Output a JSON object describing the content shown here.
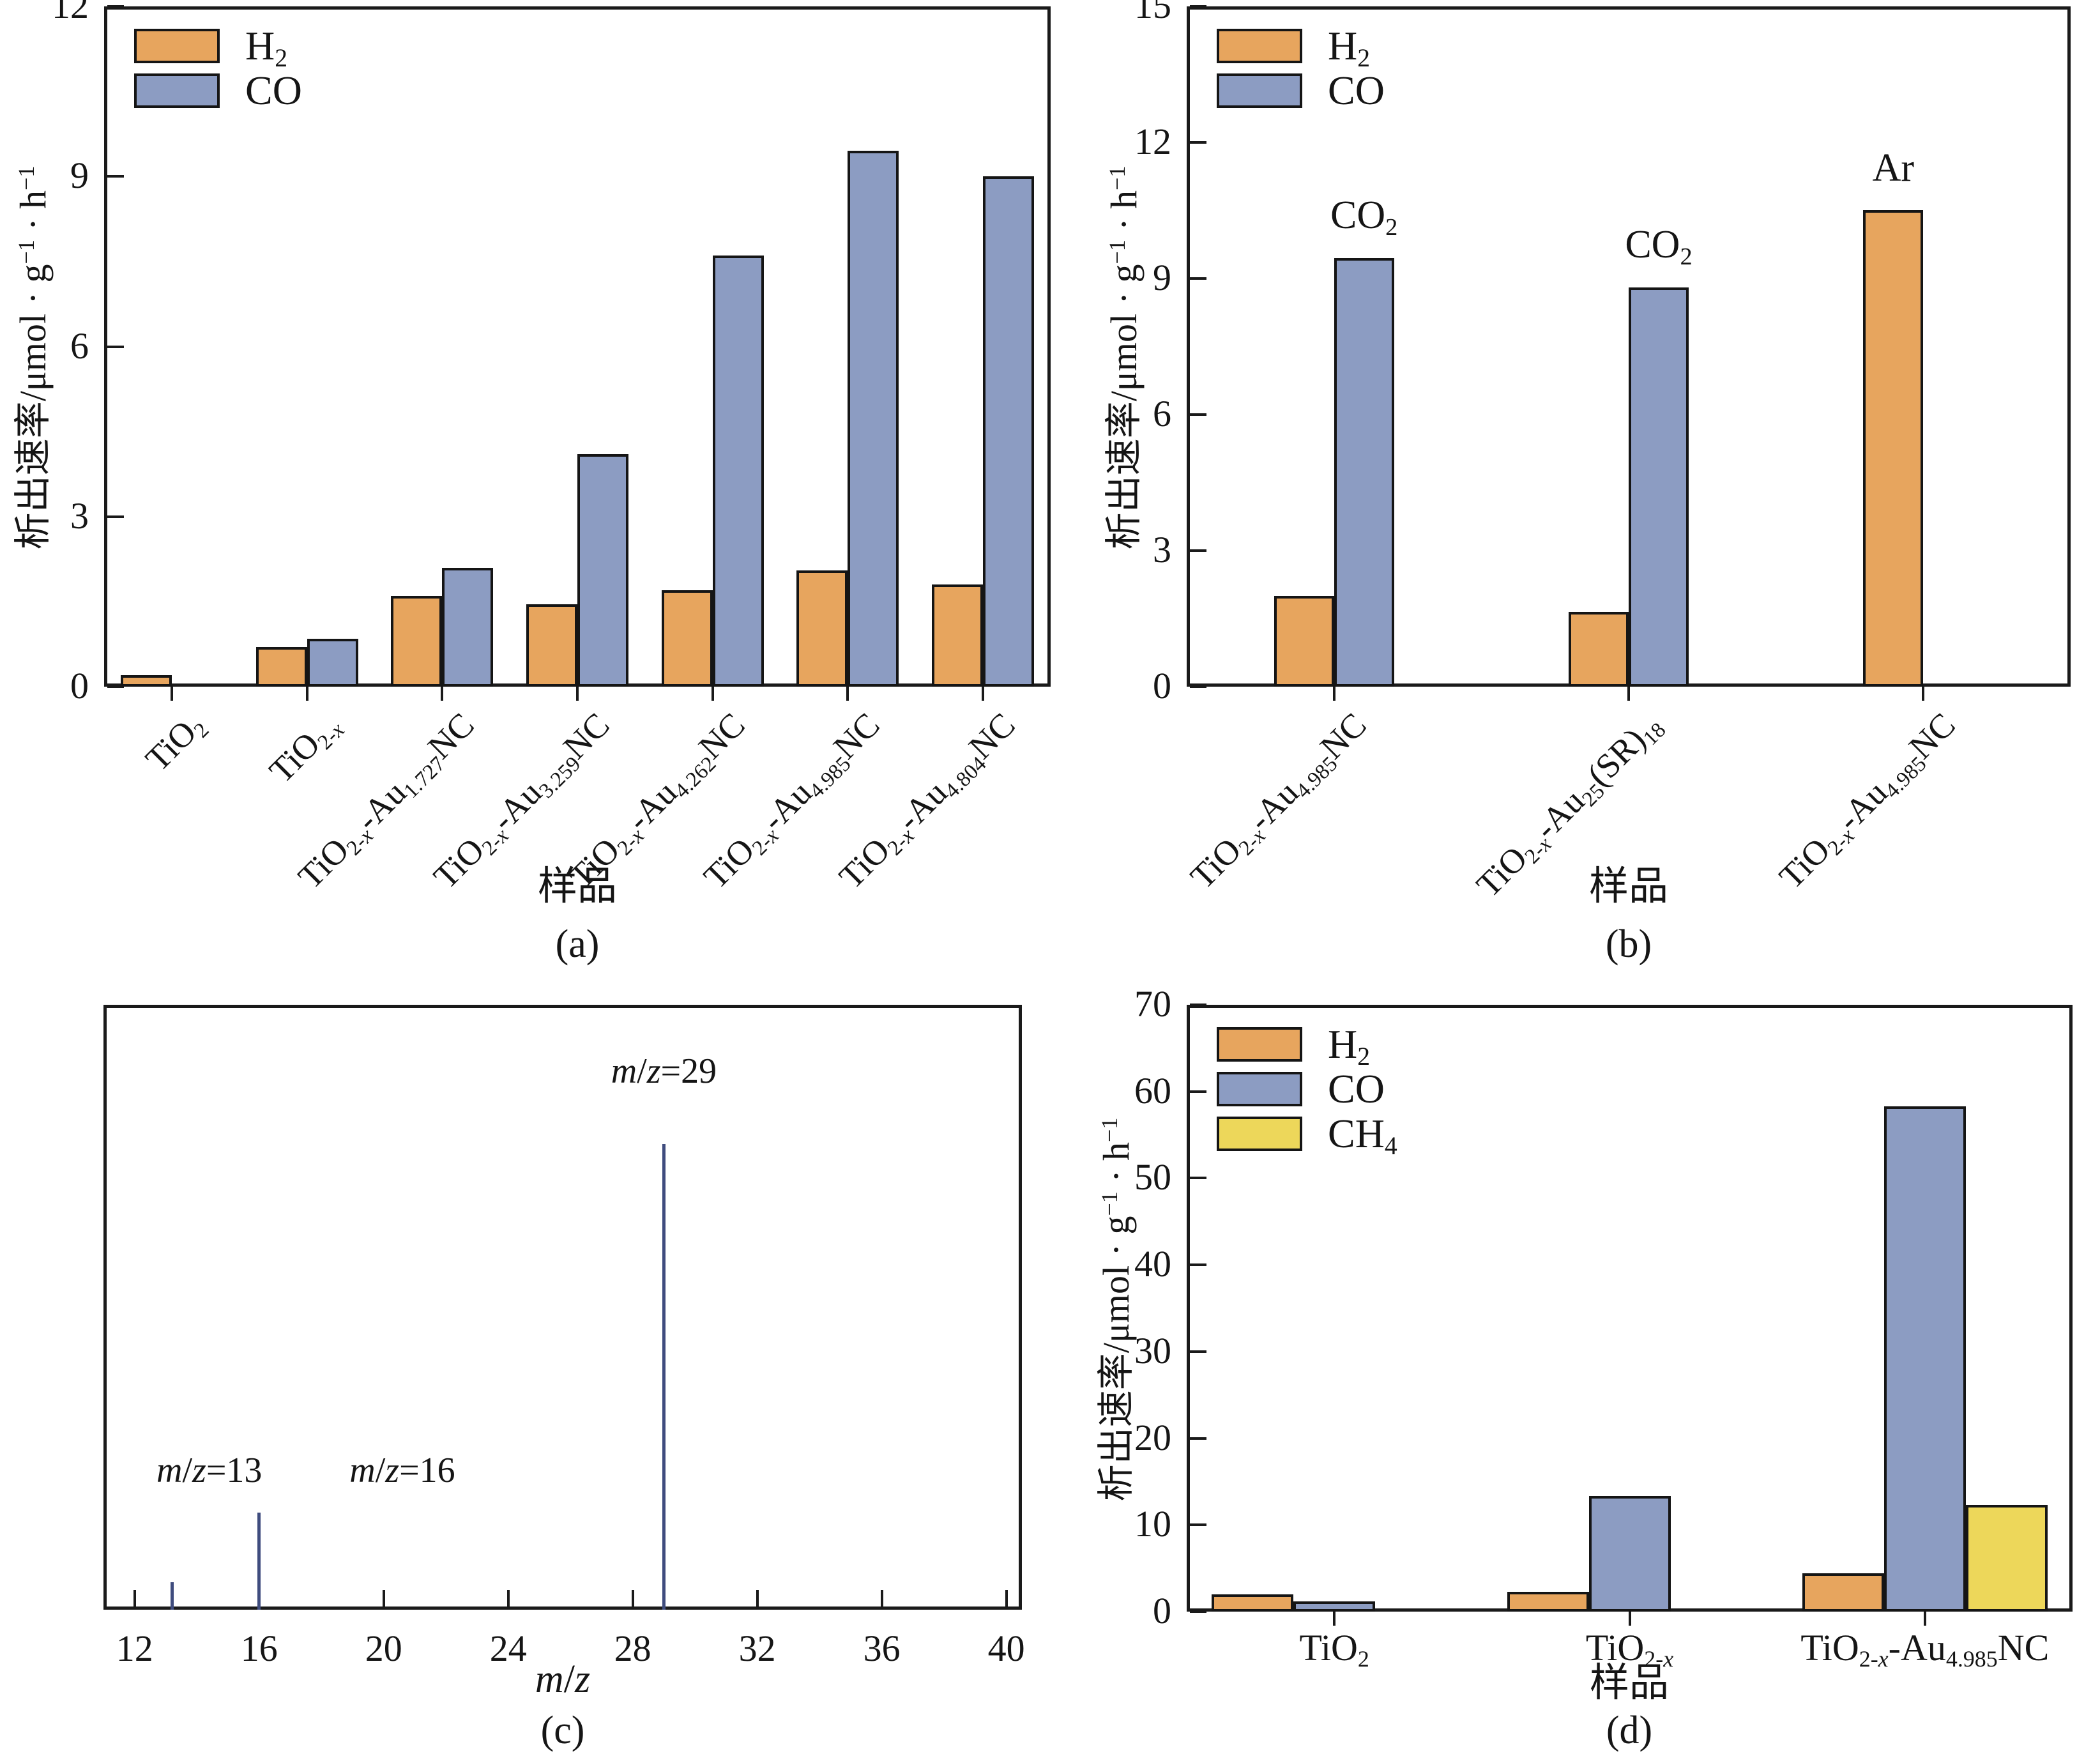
{
  "figure": {
    "y_axis_label_html": "析出速率/μmol · g<sup>−1</sup> · h<sup>−1</sup>",
    "x_axis_title_samples": "样品",
    "colors": {
      "h2_orange": "#E7A55E",
      "co_blue": "#8C9CC2",
      "ch4_yellow": "#EDD75A",
      "spectrum_line": "#3F4C7E",
      "ink": "#151515"
    }
  },
  "chart_data": [
    {
      "id": "a",
      "type": "bar",
      "panel_label": "(a)",
      "ylabel_html": "析出速率/μmol · g<sup>−1</sup> · h<sup>−1</sup>",
      "xlabel_html": "样品",
      "ylim": [
        0,
        12
      ],
      "yticks": [
        0,
        3,
        6,
        9,
        12
      ],
      "grid": false,
      "legend_position": "top-left",
      "rotated_xticks": true,
      "categories_html": [
        "TiO<sub>2</sub>",
        "TiO<sub>2-<i>x</i></sub>",
        "TiO<sub>2-<i>x</i></sub>-Au<sub>1.727</sub>NC",
        "TiO<sub>2-<i>x</i></sub>-Au<sub>3.259</sub>NC",
        "TiO<sub>2-<i>x</i></sub>-Au<sub>4.262</sub>NC",
        "TiO<sub>2-<i>x</i></sub>-Au<sub>4.985</sub>NC",
        "TiO<sub>2-<i>x</i></sub>-Au<sub>4.804</sub>NC"
      ],
      "series": [
        {
          "name": "H2",
          "label_html": "H<sub>2</sub>",
          "color": "#E7A55E",
          "values": [
            0.2,
            0.7,
            1.6,
            1.45,
            1.7,
            2.05,
            1.8
          ]
        },
        {
          "name": "CO",
          "label_html": "CO",
          "color": "#8C9CC2",
          "values": [
            0,
            0.85,
            2.1,
            4.1,
            7.6,
            9.45,
            9.0
          ]
        }
      ],
      "annotations": []
    },
    {
      "id": "b",
      "type": "bar",
      "panel_label": "(b)",
      "ylabel_html": "析出速率/μmol · g<sup>−1</sup> · h<sup>−1</sup>",
      "xlabel_html": "样品",
      "ylim": [
        0,
        15
      ],
      "yticks": [
        0,
        3,
        6,
        9,
        12,
        15
      ],
      "grid": false,
      "legend_position": "top-left",
      "rotated_xticks": true,
      "categories_html": [
        "TiO<sub>2-<i>x</i></sub>-Au<sub>4.985</sub>NC",
        "TiO<sub>2-<i>x</i></sub>-Au<sub>25</sub>(SR)<sub>18</sub>",
        "TiO<sub>2-<i>x</i></sub>-Au<sub>4.985</sub>NC"
      ],
      "series": [
        {
          "name": "H2",
          "label_html": "H<sub>2</sub>",
          "color": "#E7A55E",
          "values": [
            2.0,
            1.65,
            10.5
          ]
        },
        {
          "name": "CO",
          "label_html": "CO",
          "color": "#8C9CC2",
          "values": [
            9.45,
            8.8,
            null
          ]
        }
      ],
      "annotations": [
        {
          "html": "CO<sub>2</sub>",
          "group": 0,
          "series": 1
        },
        {
          "html": "CO<sub>2</sub>",
          "group": 1,
          "series": 1
        },
        {
          "html": "Ar",
          "group": 2,
          "series": 0
        }
      ]
    },
    {
      "id": "c",
      "type": "spectrum",
      "panel_label": "(c)",
      "xlabel_html": "<i>m</i>/<i>z</i>",
      "xlim": [
        11,
        40.5
      ],
      "xticks": [
        12,
        16,
        20,
        24,
        28,
        32,
        36,
        40
      ],
      "ylim": [
        0,
        100
      ],
      "line_color": "#3F4C7E",
      "peaks": [
        {
          "mz": 13.2,
          "intensity": 4.5,
          "label_html": "<i>m</i>/<i>z</i>=13",
          "label_at": {
            "x": 14.4,
            "y": 23
          }
        },
        {
          "mz": 16,
          "intensity": 16,
          "label_html": "<i>m</i>/<i>z</i>=16",
          "label_at": {
            "x": 20.6,
            "y": 23
          }
        },
        {
          "mz": 29,
          "intensity": 77,
          "label_html": "<i>m</i>/<i>z</i>=29",
          "label_at": {
            "x": 29,
            "y": 89
          }
        }
      ]
    },
    {
      "id": "d",
      "type": "bar",
      "panel_label": "(d)",
      "ylabel_html": "析出速率/μmol · g<sup>−1</sup> · h<sup>−1</sup>",
      "xlabel_html": "样品",
      "ylim": [
        0,
        70
      ],
      "yticks": [
        0,
        10,
        20,
        30,
        40,
        50,
        60,
        70
      ],
      "grid": false,
      "legend_position": "top-left",
      "rotated_xticks": false,
      "categories_html": [
        "TiO<sub>2</sub>",
        "TiO<sub>2-<i>x</i></sub>",
        "TiO<sub>2-<i>x</i></sub>-Au<sub>4.985</sub>NC"
      ],
      "series": [
        {
          "name": "H2",
          "label_html": "H<sub>2</sub>",
          "color": "#E7A55E",
          "values": [
            2.0,
            2.3,
            4.4
          ]
        },
        {
          "name": "CO",
          "label_html": "CO",
          "color": "#8C9CC2",
          "values": [
            1.2,
            13.3,
            58.3
          ]
        },
        {
          "name": "CH4",
          "label_html": "CH<sub>4</sub>",
          "color": "#EDD75A",
          "values": [
            null,
            null,
            12.3
          ]
        }
      ],
      "annotations": []
    }
  ]
}
